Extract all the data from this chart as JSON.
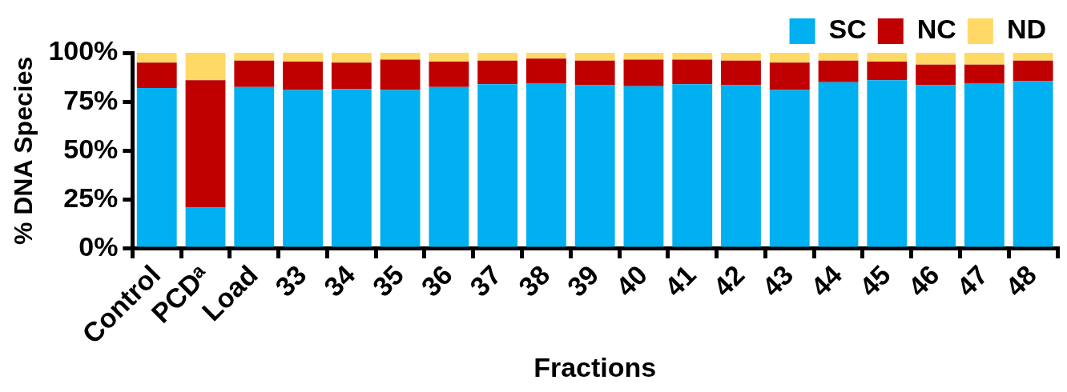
{
  "chart_data": {
    "type": "bar",
    "stacked": true,
    "xlabel": "Fractions",
    "ylabel": "% DNA Species",
    "categories": [
      "Control",
      "PCDᵃ",
      "Load",
      "33",
      "34",
      "35",
      "36",
      "37",
      "38",
      "39",
      "40",
      "41",
      "42",
      "43",
      "44",
      "45",
      "46",
      "47",
      "48"
    ],
    "series": [
      {
        "name": "SC",
        "color": "#00b0f0",
        "values": [
          82,
          21,
          82.5,
          81,
          81.5,
          81,
          82.5,
          84,
          84.5,
          83.5,
          83,
          84,
          83.5,
          81,
          85,
          86,
          83.5,
          84.5,
          85.5
        ]
      },
      {
        "name": "NC",
        "color": "#c00000",
        "values": [
          13,
          65,
          13.5,
          14.5,
          13.5,
          15.5,
          13,
          12,
          12.5,
          12.5,
          13.5,
          12.5,
          12.5,
          14,
          11,
          9.5,
          10.5,
          9.5,
          10.5
        ]
      },
      {
        "name": "ND",
        "color": "#ffd966",
        "values": [
          5,
          14,
          4,
          4.5,
          5,
          3.5,
          4.5,
          4,
          3,
          4,
          3.5,
          3.5,
          4,
          5,
          4,
          4.5,
          6,
          6,
          4
        ]
      }
    ],
    "ylim": [
      0,
      100
    ],
    "yticks": [
      {
        "value": 0,
        "label": "0%"
      },
      {
        "value": 25,
        "label": "25%"
      },
      {
        "value": 50,
        "label": "50%"
      },
      {
        "value": 75,
        "label": "75%"
      },
      {
        "value": 100,
        "label": "100%"
      }
    ],
    "grid": false,
    "legend": "top right"
  }
}
